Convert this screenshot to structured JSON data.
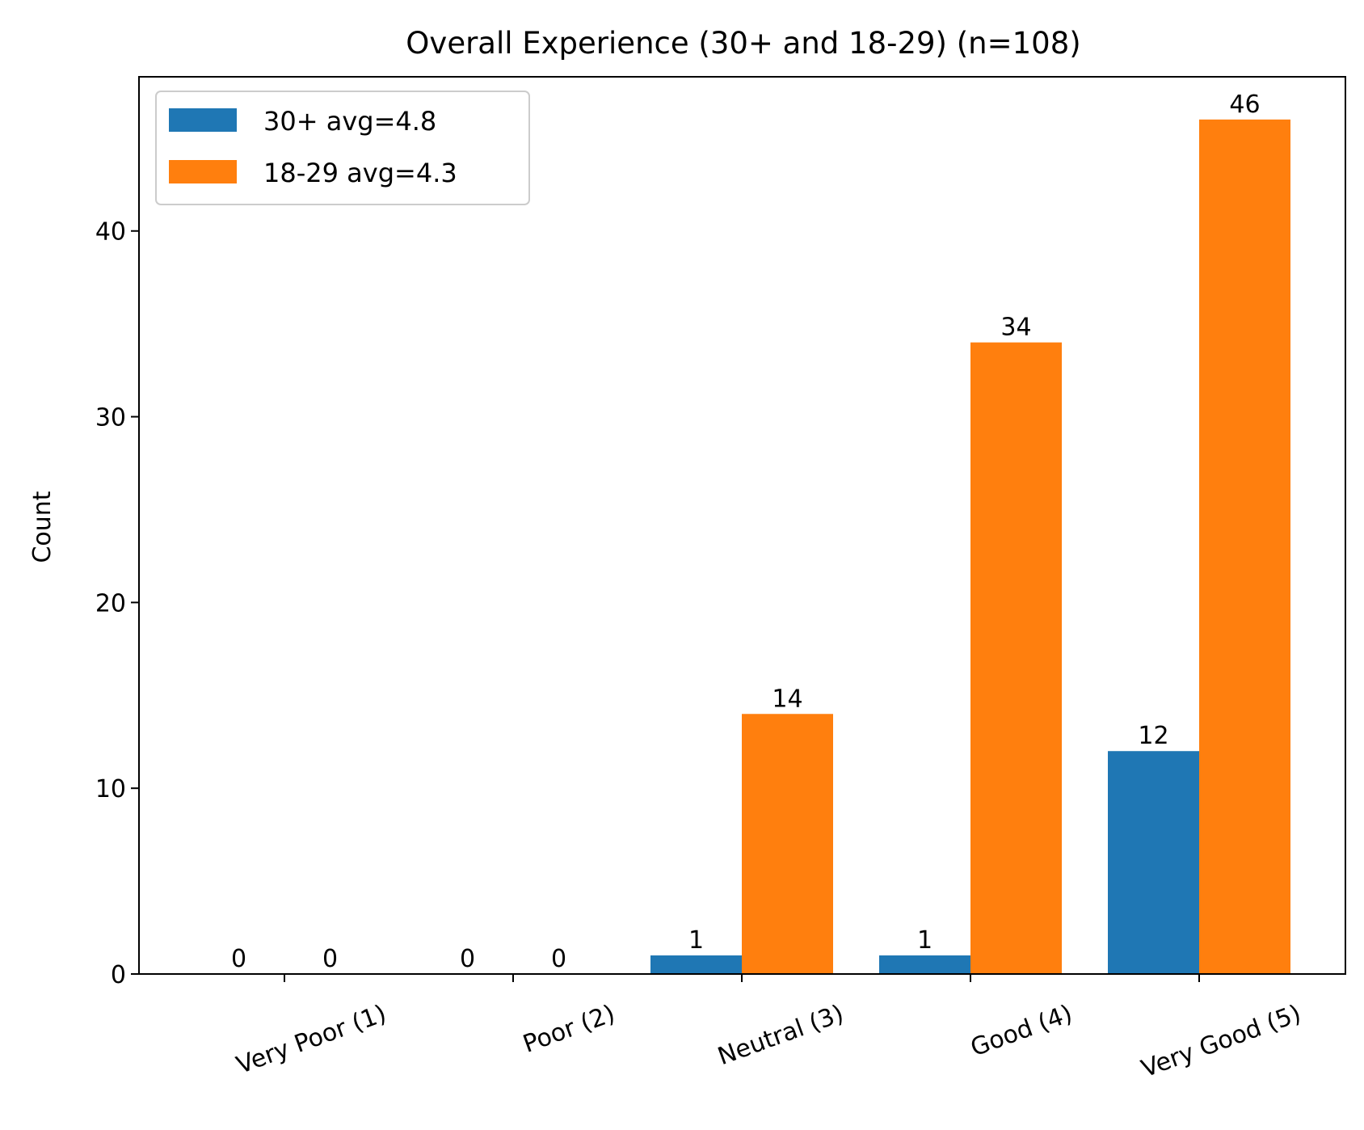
{
  "chart_data": {
    "type": "bar",
    "title": "Overall Experience (30+ and 18-29) (n=108)",
    "xlabel": "",
    "ylabel": "Count",
    "categories": [
      "Very Poor (1)",
      "Poor (2)",
      "Neutral (3)",
      "Good (4)",
      "Very Good (5)"
    ],
    "series": [
      {
        "name": "30+ avg=4.8",
        "color": "#1f77b4",
        "values": [
          0,
          0,
          1,
          1,
          12
        ]
      },
      {
        "name": "18-29 avg=4.3",
        "color": "#ff7f0e",
        "values": [
          0,
          0,
          14,
          34,
          46
        ]
      }
    ],
    "ylim": [
      0,
      48.3
    ],
    "yticks": [
      0,
      10,
      20,
      30,
      40
    ],
    "xtick_rotation_deg": -20,
    "grid": false,
    "legend_position": "top-left",
    "data_labels": true
  }
}
